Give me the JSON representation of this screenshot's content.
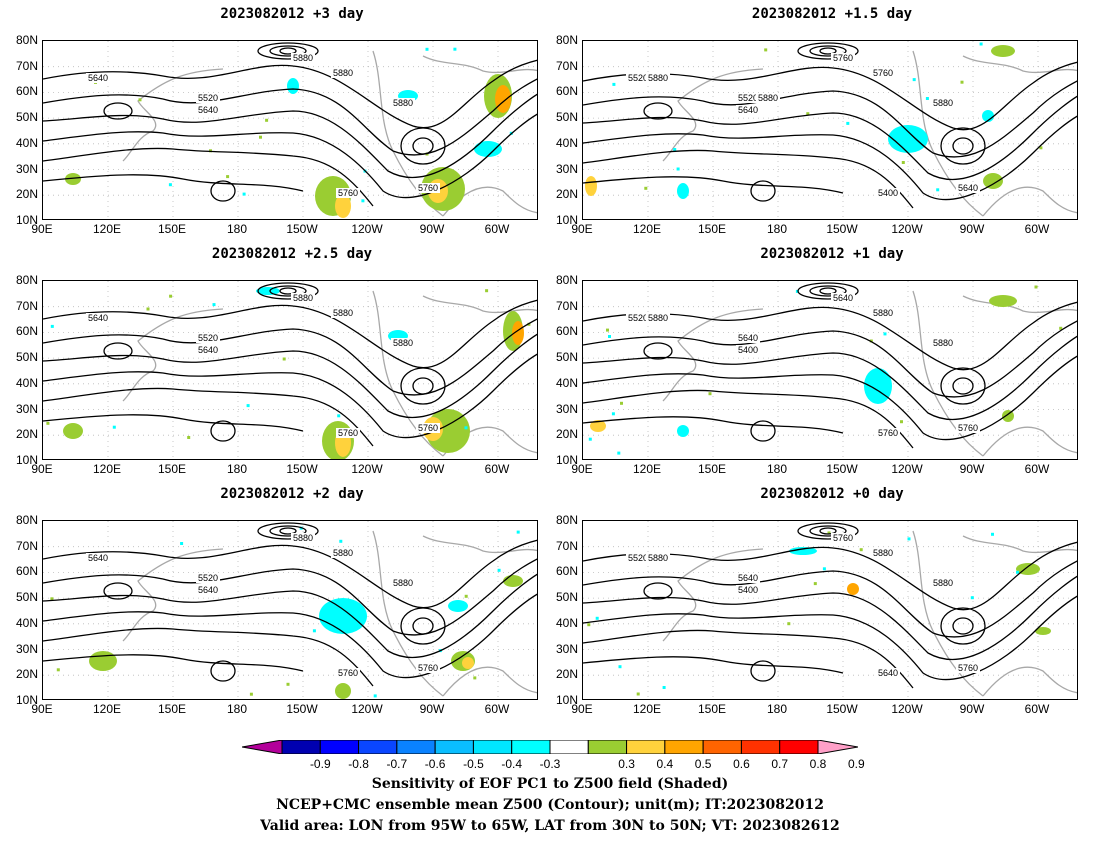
{
  "panels": [
    {
      "title": "2023082012  +3 day",
      "contours": [
        "5640",
        "5520",
        "5640",
        "5760",
        "5760",
        "5880",
        "5880",
        "5880"
      ]
    },
    {
      "title": "2023082012  +1.5 day",
      "contours": [
        "5520",
        "5520",
        "5640",
        "5400",
        "5640",
        "5760",
        "5760",
        "5880",
        "5880",
        "5880"
      ]
    },
    {
      "title": "2023082012  +2.5 day",
      "contours": [
        "5640",
        "5520",
        "5640",
        "5760",
        "5760",
        "5880",
        "5880",
        "5880"
      ]
    },
    {
      "title": "2023082012  +1 day",
      "contours": [
        "5520",
        "5640",
        "5400",
        "5760",
        "5760",
        "5640",
        "5880",
        "5880",
        "5880"
      ]
    },
    {
      "title": "2023082012  +2 day",
      "contours": [
        "5640",
        "5520",
        "5640",
        "5760",
        "5760",
        "5880",
        "5880",
        "5880"
      ]
    },
    {
      "title": "2023082012  +0 day",
      "contours": [
        "5520",
        "5640",
        "5400",
        "5640",
        "5760",
        "5760",
        "5880",
        "5880",
        "5880"
      ]
    }
  ],
  "lat_labels": [
    "80N",
    "70N",
    "60N",
    "50N",
    "40N",
    "30N",
    "20N",
    "10N"
  ],
  "lon_labels": [
    "90E",
    "120E",
    "150E",
    "180",
    "150W",
    "120W",
    "90W",
    "60W"
  ],
  "colorbar": {
    "labels": [
      "-0.9",
      "-0.8",
      "-0.7",
      "-0.6",
      "-0.5",
      "-0.4",
      "-0.3",
      "0.3",
      "0.4",
      "0.5",
      "0.6",
      "0.7",
      "0.8",
      "0.9"
    ],
    "colors": [
      "#b3009a",
      "#0000b0",
      "#0000ff",
      "#0a46ff",
      "#0a82ff",
      "#0abeff",
      "#00e6ff",
      "#00ffff",
      "#ffffff",
      "#9acd32",
      "#ffd23c",
      "#ffa500",
      "#ff6400",
      "#ff3200",
      "#ff0000",
      "#ffa0c8"
    ]
  },
  "caption": {
    "line1": "Sensitivity of EOF PC1 to Z500 field (Shaded)",
    "line2": "NCEP+CMC ensemble mean Z500 (Contour); unit(m); IT:2023082012",
    "line3": "Valid area: LON from 95W to 65W, LAT from 30N to 50N; VT: 2023082612"
  }
}
